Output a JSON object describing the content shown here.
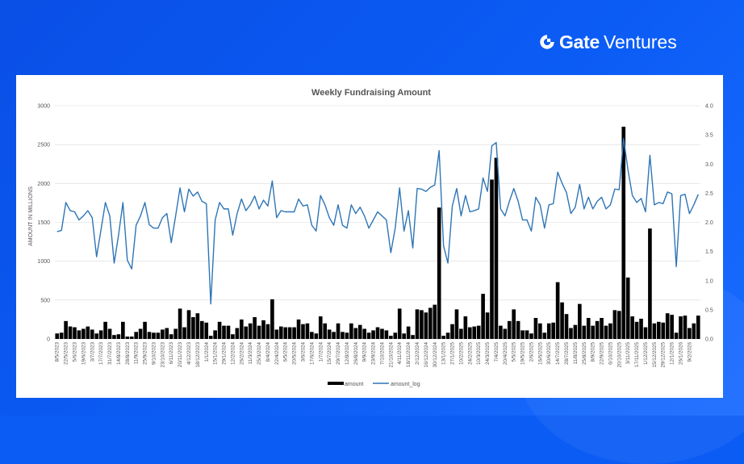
{
  "brand": {
    "name_bold": "Gate",
    "name_regular": "Ventures",
    "logo_icon": "gate-logo-icon"
  },
  "colors": {
    "background": "#0b5cf5",
    "bar": "#000000",
    "line": "#2e75b6"
  },
  "chart_data": {
    "type": "bar+line",
    "title": "Weekly Fundraising Amount",
    "ylabel": "AMOUNT IN MILLIONS",
    "y2label": "",
    "ylim": [
      0,
      3000
    ],
    "y2lim": [
      0,
      4.0
    ],
    "yticks": [
      "0",
      "500",
      "1000",
      "1500",
      "2000",
      "2500",
      "3000"
    ],
    "y2ticks": [
      "0.0",
      "0.5",
      "1.0",
      "1.5",
      "2.0",
      "2.5",
      "3.0",
      "3.5",
      "4.0"
    ],
    "grid": true,
    "legend_position": "bottom",
    "x_tick_labels": [
      "8/5/2023",
      "22/5/2023",
      "5/6/2023",
      "19/6/2023",
      "3/7/2023",
      "17/7/2023",
      "31/7/2023",
      "14/8/2023",
      "28/8/2023",
      "11/9/2023",
      "25/9/2023",
      "9/10/2023",
      "23/10/2023",
      "6/11/2023",
      "20/11/2023",
      "4/12/2023",
      "18/12/2023",
      "1/1/2024",
      "15/1/2024",
      "29/1/2024",
      "12/2/2024",
      "26/2/2024",
      "11/3/2024",
      "25/3/2024",
      "8/4/2024",
      "22/4/2024",
      "6/5/2024",
      "20/5/2024",
      "3/6/2024",
      "17/6/2024",
      "1/7/2024",
      "15/7/2024",
      "29/7/2024",
      "12/8/2024",
      "26/8/2024",
      "9/9/2024",
      "23/9/2024",
      "7/10/2024",
      "21/10/2024",
      "4/11/2024",
      "18/11/2024",
      "2/12/2024",
      "16/12/2024",
      "30/12/2024",
      "13/1/2025",
      "27/1/2025",
      "10/2/2025",
      "24/2/2025",
      "10/3/2025",
      "24/3/2025",
      "7/4/2025",
      "20/4/2025",
      "5/5/2025",
      "19/5/2025",
      "2/6/2025",
      "16/6/2025",
      "30/6/2025",
      "14/7/2025",
      "28/7/2025",
      "11/8/2025",
      "25/8/2025",
      "8/9/2025",
      "22/9/2025",
      "6/10/2025",
      "20/10/2025",
      "3/11/2025",
      "17/11/2025",
      "1/12/2025",
      "15/12/2025",
      "29/12/2025",
      "12/1/2026",
      "26/1/2026",
      "9/2/2026"
    ],
    "series": [
      {
        "name": "amount",
        "kind": "bar",
        "values": [
          70,
          80,
          230,
          160,
          150,
          110,
          130,
          160,
          120,
          70,
          110,
          220,
          130,
          50,
          60,
          220,
          30,
          30,
          90,
          130,
          220,
          90,
          80,
          80,
          120,
          140,
          60,
          130,
          390,
          150,
          370,
          280,
          330,
          230,
          210,
          40,
          110,
          220,
          170,
          170,
          60,
          140,
          250,
          160,
          200,
          280,
          170,
          240,
          190,
          510,
          120,
          160,
          150,
          150,
          150,
          250,
          190,
          200,
          90,
          70,
          290,
          200,
          120,
          90,
          200,
          90,
          80,
          200,
          140,
          180,
          130,
          80,
          110,
          150,
          130,
          110,
          40,
          80,
          390,
          70,
          160,
          50,
          380,
          370,
          340,
          400,
          440,
          1690,
          40,
          80,
          190,
          380,
          130,
          290,
          150,
          160,
          170,
          580,
          340,
          2050,
          2330,
          170,
          130,
          230,
          380,
          230,
          110,
          110,
          70,
          270,
          200,
          80,
          200,
          210,
          730,
          470,
          320,
          140,
          180,
          450,
          170,
          270,
          170,
          230,
          270,
          170,
          200,
          370,
          360,
          2730,
          790,
          290,
          220,
          260,
          150,
          1420,
          200,
          220,
          210,
          330,
          310,
          80,
          290,
          300,
          140,
          200,
          300
        ],
        "color": "#000000"
      },
      {
        "name": "amount_log",
        "kind": "line",
        "axis": "right",
        "values": [
          1.84,
          1.86,
          2.34,
          2.2,
          2.18,
          2.04,
          2.11,
          2.2,
          2.08,
          1.41,
          1.87,
          2.34,
          2.11,
          1.3,
          1.78,
          2.34,
          1.35,
          1.2,
          1.95,
          2.11,
          2.34,
          1.96,
          1.9,
          1.9,
          2.08,
          2.15,
          1.65,
          2.11,
          2.59,
          2.18,
          2.57,
          2.45,
          2.52,
          2.36,
          2.32,
          0.6,
          2.04,
          2.34,
          2.23,
          2.23,
          1.78,
          2.15,
          2.4,
          2.2,
          2.3,
          2.45,
          2.23,
          2.38,
          2.28,
          2.71,
          2.08,
          2.2,
          2.18,
          2.18,
          2.18,
          2.4,
          2.28,
          2.3,
          1.95,
          1.85,
          2.46,
          2.3,
          2.08,
          1.95,
          2.3,
          1.95,
          1.9,
          2.3,
          2.15,
          2.26,
          2.11,
          1.9,
          2.04,
          2.18,
          2.11,
          2.04,
          1.48,
          1.9,
          2.59,
          1.85,
          2.2,
          1.56,
          2.58,
          2.57,
          2.53,
          2.6,
          2.64,
          3.23,
          1.6,
          1.3,
          2.28,
          2.58,
          2.11,
          2.46,
          2.18,
          2.2,
          2.23,
          2.76,
          2.53,
          3.31,
          3.37,
          2.23,
          2.11,
          2.36,
          2.58,
          2.36,
          2.04,
          2.04,
          1.85,
          2.43,
          2.3,
          1.9,
          2.3,
          2.32,
          2.86,
          2.67,
          2.51,
          2.15,
          2.26,
          2.65,
          2.23,
          2.43,
          2.23,
          2.36,
          2.43,
          2.23,
          2.3,
          2.57,
          2.56,
          3.44,
          2.9,
          2.46,
          2.34,
          2.41,
          2.18,
          3.15,
          2.3,
          2.34,
          2.32,
          2.52,
          2.49,
          1.24,
          2.46,
          2.48,
          2.15,
          2.3,
          2.48
        ],
        "color": "#2e75b6"
      }
    ]
  }
}
